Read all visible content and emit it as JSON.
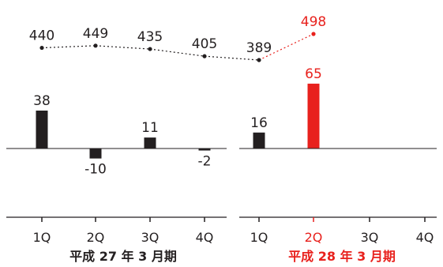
{
  "colors": {
    "normal": "#231f20",
    "highlight": "#e8211d",
    "axis": "#231f20",
    "dotted_line": "#231f20"
  },
  "chart_data": {
    "type": "bar",
    "categories": [
      "1Q",
      "2Q",
      "3Q",
      "4Q",
      "1Q",
      "2Q",
      "3Q",
      "4Q"
    ],
    "groups": [
      {
        "label": "平成 27 年 3 月期",
        "highlight": false,
        "categories": [
          "1Q",
          "2Q",
          "3Q",
          "4Q"
        ]
      },
      {
        "label": "平成 28 年 3 月期",
        "highlight": true,
        "categories": [
          "1Q",
          "2Q",
          "3Q",
          "4Q"
        ]
      }
    ],
    "series": [
      {
        "type": "line",
        "style": "dotted",
        "values": [
          440,
          449,
          435,
          405,
          389,
          498,
          null,
          null
        ],
        "labels": [
          "440",
          "449",
          "435",
          "405",
          "389",
          "498",
          "",
          ""
        ]
      },
      {
        "type": "bar",
        "values": [
          38,
          -10,
          11,
          -2,
          16,
          65,
          null,
          null
        ],
        "labels": [
          "38",
          "-10",
          "11",
          "-2",
          "16",
          "65",
          "",
          ""
        ]
      }
    ],
    "highlight_index": 5,
    "line_ylim": [
      380,
      500
    ],
    "bar_ylim": [
      -20,
      70
    ],
    "grid": false,
    "legend": "none"
  }
}
